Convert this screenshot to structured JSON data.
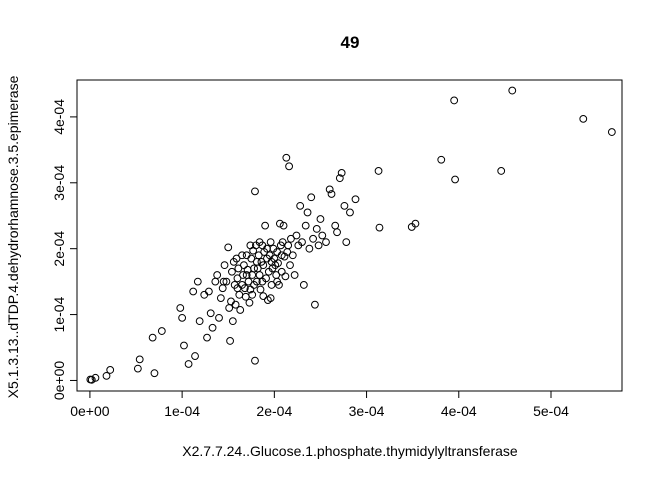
{
  "chart_data": {
    "type": "scatter",
    "title": "49",
    "xlabel": "X2.7.7.24..Glucose.1.phosphate.thymidylyltransferase",
    "ylabel": "X5.1.3.13..dTDP.4.dehydrorhamnose.3.5.epimerase",
    "xlim": [
      -1.4e-05,
      0.000577
    ],
    "ylim": [
      -1.6e-05,
      0.000456
    ],
    "xticks": [
      {
        "value": 0,
        "label": "0e+00"
      },
      {
        "value": 0.0001,
        "label": "1e-04"
      },
      {
        "value": 0.0002,
        "label": "2e-04"
      },
      {
        "value": 0.0003,
        "label": "3e-04"
      },
      {
        "value": 0.0004,
        "label": "4e-04"
      },
      {
        "value": 0.0005,
        "label": "5e-04"
      }
    ],
    "yticks": [
      {
        "value": 0,
        "label": "0e+00"
      },
      {
        "value": 0.0001,
        "label": "1e-04"
      },
      {
        "value": 0.0002,
        "label": "2e-04"
      },
      {
        "value": 0.0003,
        "label": "3e-04"
      },
      {
        "value": 0.0004,
        "label": "4e-04"
      }
    ],
    "grid": false,
    "marker": "open-circle",
    "points": [
      [
        5e-07,
        1.5e-06
      ],
      [
        2e-06,
        1e-06
      ],
      [
        6e-06,
        4e-06
      ],
      [
        1.8e-05,
        7e-06
      ],
      [
        2.2e-05,
        1.6e-05
      ],
      [
        5.2e-05,
        1.8e-05
      ],
      [
        5.4e-05,
        3.2e-05
      ],
      [
        6.8e-05,
        6.5e-05
      ],
      [
        7e-05,
        1.1e-05
      ],
      [
        7.8e-05,
        7.5e-05
      ],
      [
        9.8e-05,
        0.00011
      ],
      [
        0.0001,
        9.5e-05
      ],
      [
        0.000102,
        5.3e-05
      ],
      [
        0.000107,
        2.5e-05
      ],
      [
        0.000112,
        0.000135
      ],
      [
        0.000114,
        3.7e-05
      ],
      [
        0.000117,
        0.00015
      ],
      [
        0.000119,
        9e-05
      ],
      [
        0.000124,
        0.00013
      ],
      [
        0.000127,
        6.5e-05
      ],
      [
        0.000129,
        0.000135
      ],
      [
        0.000131,
        0.000102
      ],
      [
        0.000133,
        8e-05
      ],
      [
        0.000136,
        0.00015
      ],
      [
        0.000138,
        0.00016
      ],
      [
        0.00014,
        9.5e-05
      ],
      [
        0.000142,
        0.000125
      ],
      [
        0.000144,
        0.00014
      ],
      [
        0.000146,
        0.000175
      ],
      [
        0.000148,
        0.00015
      ],
      [
        0.00015,
        0.000202
      ],
      [
        0.000151,
        0.00011
      ],
      [
        0.000152,
        6e-05
      ],
      [
        0.000154,
        0.000165
      ],
      [
        0.000155,
        9e-05
      ],
      [
        0.000156,
        0.00018
      ],
      [
        0.000157,
        0.000145
      ],
      [
        0.000158,
        0.000115
      ],
      [
        0.000159,
        0.000185
      ],
      [
        0.00016,
        0.000155
      ],
      [
        0.000161,
        0.00017
      ],
      [
        0.000162,
        0.00013
      ],
      [
        0.000163,
        0.000107
      ],
      [
        0.000165,
        0.000145
      ],
      [
        0.000166,
        0.00016
      ],
      [
        0.000167,
        0.000175
      ],
      [
        0.000168,
        0.00014
      ],
      [
        0.000169,
        0.000127
      ],
      [
        0.00017,
        0.00019
      ],
      [
        0.000171,
        0.000168
      ],
      [
        0.000172,
        0.00015
      ],
      [
        0.000173,
        0.000118
      ],
      [
        0.000174,
        0.000138
      ],
      [
        0.000175,
        0.000185
      ],
      [
        0.000176,
        0.00016
      ],
      [
        0.000177,
        0.000197
      ],
      [
        0.000178,
        0.00017
      ],
      [
        0.000178,
        0.000145
      ],
      [
        0.000179,
        0.000287
      ],
      [
        0.000179,
        3e-05
      ],
      [
        0.00018,
        0.000205
      ],
      [
        0.000181,
        0.00015
      ],
      [
        0.000182,
        0.00017
      ],
      [
        0.000183,
        0.00019
      ],
      [
        0.000184,
        0.00016
      ],
      [
        0.000185,
        0.000138
      ],
      [
        0.000186,
        0.00018
      ],
      [
        0.000187,
        0.000205
      ],
      [
        0.000188,
        0.000128
      ],
      [
        0.000188,
        0.000175
      ],
      [
        0.000189,
        0.000195
      ],
      [
        0.00019,
        0.000235
      ],
      [
        0.000191,
        0.000155
      ],
      [
        0.000192,
        0.000185
      ],
      [
        0.000193,
        0.000122
      ],
      [
        0.000194,
        0.000165
      ],
      [
        0.000195,
        0.00019
      ],
      [
        0.000196,
        0.00021
      ],
      [
        0.000197,
        0.000145
      ],
      [
        0.000198,
        0.00017
      ],
      [
        0.000199,
        0.0002
      ],
      [
        0.0002,
        0.000185
      ],
      [
        0.000201,
        0.000175
      ],
      [
        0.000202,
        0.00016
      ],
      [
        0.000203,
        0.000195
      ],
      [
        0.000204,
        0.000178
      ],
      [
        0.000205,
        0.000145
      ],
      [
        0.000206,
        0.000238
      ],
      [
        0.000207,
        0.000205
      ],
      [
        0.000208,
        0.000165
      ],
      [
        0.000209,
        0.00021
      ],
      [
        0.00021,
        0.000235
      ],
      [
        0.000211,
        0.000188
      ],
      [
        0.000212,
        0.000158
      ],
      [
        0.000213,
        0.000338
      ],
      [
        0.000214,
        0.000195
      ],
      [
        0.000215,
        0.000205
      ],
      [
        0.000216,
        0.000325
      ],
      [
        0.000217,
        0.000175
      ],
      [
        0.000218,
        0.000215
      ],
      [
        0.00022,
        0.00019
      ],
      [
        0.000222,
        0.00016
      ],
      [
        0.000224,
        0.00022
      ],
      [
        0.000226,
        0.000205
      ],
      [
        0.000228,
        0.000265
      ],
      [
        0.00023,
        0.00021
      ],
      [
        0.000232,
        0.000145
      ],
      [
        0.000234,
        0.000235
      ],
      [
        0.000236,
        0.000255
      ],
      [
        0.000238,
        0.0002
      ],
      [
        0.00024,
        0.000278
      ],
      [
        0.000242,
        0.000215
      ],
      [
        0.000244,
        0.000115
      ],
      [
        0.000246,
        0.00023
      ],
      [
        0.000248,
        0.000205
      ],
      [
        0.00025,
        0.000245
      ],
      [
        0.000252,
        0.00022
      ],
      [
        0.000256,
        0.00021
      ],
      [
        0.00026,
        0.00029
      ],
      [
        0.000262,
        0.000283
      ],
      [
        0.000266,
        0.000235
      ],
      [
        0.000268,
        0.000225
      ],
      [
        0.000271,
        0.000307
      ],
      [
        0.000273,
        0.000315
      ],
      [
        0.000276,
        0.000265
      ],
      [
        0.000278,
        0.00021
      ],
      [
        0.000282,
        0.000255
      ],
      [
        0.000288,
        0.000275
      ],
      [
        0.000313,
        0.000318
      ],
      [
        0.000314,
        0.000232
      ],
      [
        0.000349,
        0.000233
      ],
      [
        0.000353,
        0.000238
      ],
      [
        0.000381,
        0.000335
      ],
      [
        0.000395,
        0.000425
      ],
      [
        0.000396,
        0.000305
      ],
      [
        0.000446,
        0.000318
      ],
      [
        0.000458,
        0.00044
      ],
      [
        0.000535,
        0.000397
      ],
      [
        0.000566,
        0.000377
      ],
      [
        0.000145,
        0.00015
      ],
      [
        0.000153,
        0.00012
      ],
      [
        0.00016,
        0.00014
      ],
      [
        0.000165,
        0.00019
      ],
      [
        0.00017,
        0.00016
      ],
      [
        0.000176,
        0.00013
      ],
      [
        0.000181,
        0.00018
      ],
      [
        0.000187,
        0.00015
      ],
      [
        0.000192,
        0.0002
      ],
      [
        0.000197,
        0.00018
      ],
      [
        0.000203,
        0.00015
      ],
      [
        0.000208,
        0.00019
      ],
      [
        0.000184,
        0.00021
      ],
      [
        0.000174,
        0.000205
      ],
      [
        0.000196,
        0.000125
      ]
    ]
  }
}
